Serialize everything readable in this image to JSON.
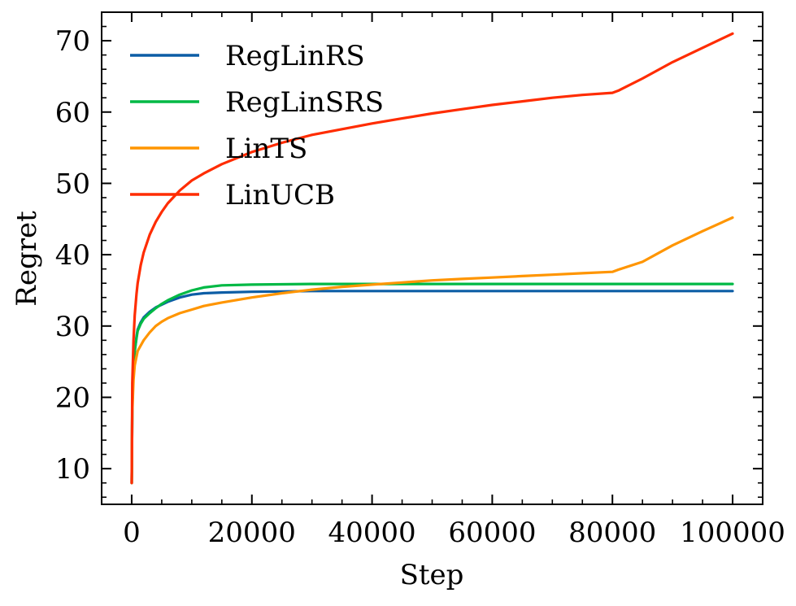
{
  "chart_data": {
    "type": "line",
    "title": "",
    "xlabel": "Step",
    "ylabel": "Regret",
    "xlim": [
      -5000,
      105000
    ],
    "ylim": [
      5,
      74
    ],
    "xticks": [
      0,
      20000,
      40000,
      60000,
      80000,
      100000
    ],
    "xtick_labels": [
      "0",
      "20000",
      "40000",
      "60000",
      "80000",
      "100000"
    ],
    "yticks": [
      10,
      20,
      30,
      40,
      50,
      60,
      70
    ],
    "ytick_labels": [
      "10",
      "20",
      "30",
      "40",
      "50",
      "60",
      "70"
    ],
    "grid": false,
    "legend_position": "top-left",
    "series": [
      {
        "name": "RegLinRS",
        "color": "#0c5da5",
        "x": [
          0,
          100,
          300,
          500,
          800,
          1000,
          1500,
          2000,
          3000,
          4000,
          5000,
          6000,
          8000,
          10000,
          12000,
          15000,
          20000,
          25000,
          30000,
          40000,
          50000,
          60000,
          70000,
          80000,
          90000,
          100000
        ],
        "y": [
          8.0,
          19.0,
          24.0,
          26.5,
          28.5,
          29.5,
          30.5,
          31.2,
          32.0,
          32.6,
          33.0,
          33.4,
          34.0,
          34.4,
          34.6,
          34.7,
          34.8,
          34.85,
          34.9,
          34.9,
          34.9,
          34.9,
          34.9,
          34.9,
          34.9,
          34.9
        ]
      },
      {
        "name": "RegLinSRS",
        "color": "#00b945",
        "x": [
          0,
          100,
          300,
          500,
          800,
          1000,
          1500,
          2000,
          3000,
          4000,
          5000,
          6000,
          8000,
          10000,
          12000,
          15000,
          20000,
          25000,
          30000,
          40000,
          50000,
          60000,
          70000,
          80000,
          90000,
          100000
        ],
        "y": [
          8.0,
          19.0,
          24.0,
          26.5,
          28.3,
          29.3,
          30.3,
          31.0,
          31.8,
          32.5,
          33.1,
          33.6,
          34.4,
          35.0,
          35.4,
          35.7,
          35.8,
          35.85,
          35.9,
          35.9,
          35.9,
          35.9,
          35.9,
          35.9,
          35.9,
          35.9
        ]
      },
      {
        "name": "LinTS",
        "color": "#ff9500",
        "x": [
          0,
          100,
          300,
          500,
          1000,
          2000,
          3000,
          4000,
          5000,
          6000,
          8000,
          10000,
          12000,
          15000,
          20000,
          25000,
          30000,
          35000,
          40000,
          45000,
          50000,
          55000,
          60000,
          65000,
          70000,
          75000,
          80000,
          81000,
          85000,
          90000,
          95000,
          100000
        ],
        "y": [
          8.0,
          18.0,
          22.5,
          24.5,
          26.5,
          28.0,
          29.1,
          30.0,
          30.6,
          31.1,
          31.8,
          32.3,
          32.8,
          33.3,
          34.0,
          34.6,
          35.1,
          35.5,
          35.8,
          36.1,
          36.4,
          36.6,
          36.8,
          37.0,
          37.2,
          37.4,
          37.6,
          37.9,
          39.0,
          41.3,
          43.3,
          45.2
        ]
      },
      {
        "name": "LinUCB",
        "color": "#ff2c00",
        "x": [
          0,
          100,
          300,
          500,
          800,
          1000,
          1500,
          2000,
          3000,
          4000,
          5000,
          6000,
          8000,
          10000,
          12000,
          15000,
          20000,
          25000,
          30000,
          35000,
          40000,
          45000,
          50000,
          55000,
          60000,
          65000,
          70000,
          75000,
          80000,
          81000,
          85000,
          90000,
          95000,
          100000
        ],
        "y": [
          8.0,
          22.0,
          28.0,
          31.5,
          34.5,
          36.0,
          38.5,
          40.3,
          42.8,
          44.6,
          46.0,
          47.2,
          49.0,
          50.4,
          51.4,
          52.7,
          54.4,
          55.7,
          56.8,
          57.6,
          58.4,
          59.1,
          59.8,
          60.4,
          61.0,
          61.5,
          62.0,
          62.4,
          62.7,
          63.0,
          64.7,
          67.0,
          69.0,
          71.0
        ]
      }
    ]
  }
}
